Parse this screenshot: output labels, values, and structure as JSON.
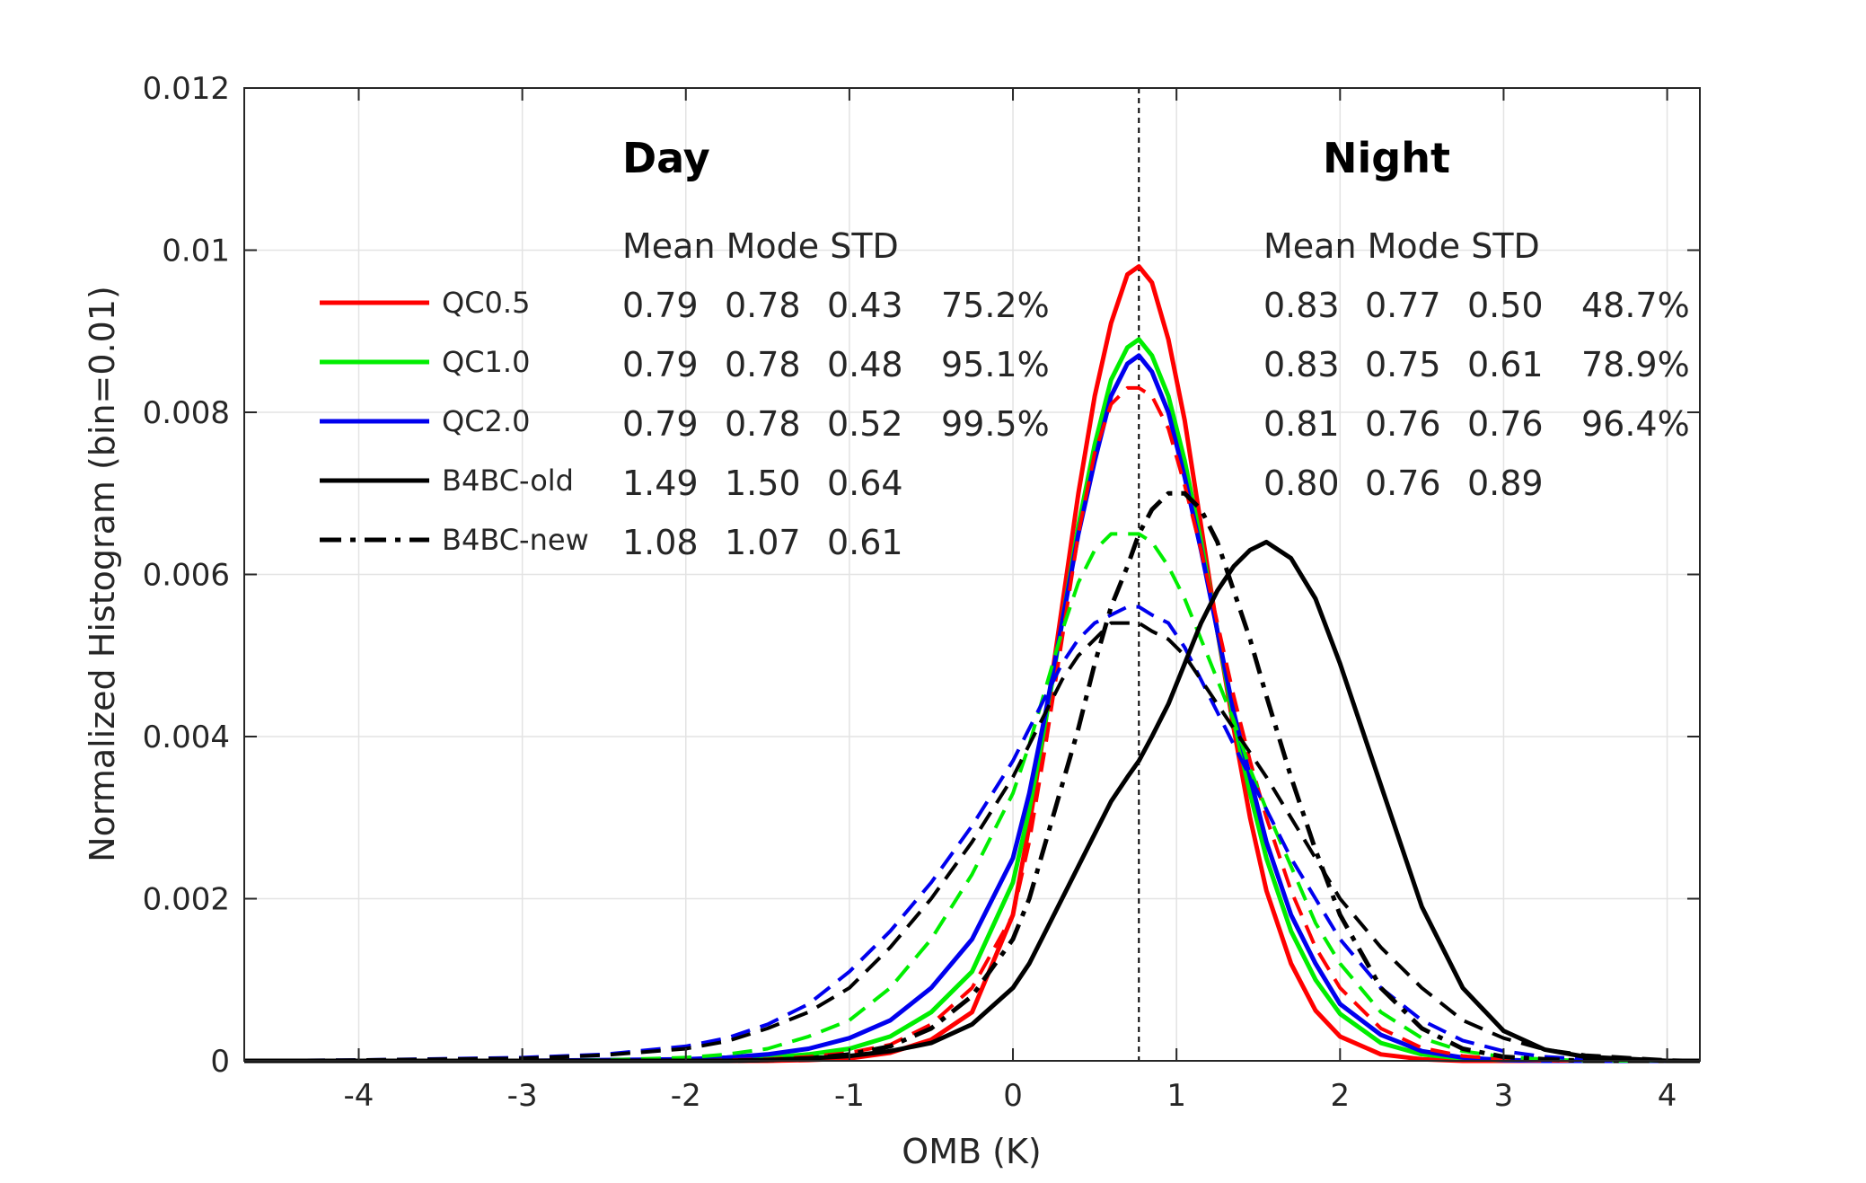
{
  "chart_data": {
    "type": "line",
    "xlabel": "OMB (K)",
    "ylabel": "Normalized Histogram (bin=0.01)",
    "xlim": [
      -4.7,
      4.2
    ],
    "ylim": [
      0,
      0.012
    ],
    "x_ticks": [
      -4,
      -3,
      -2,
      -1,
      0,
      1,
      2,
      3,
      4
    ],
    "x_tick_labels": [
      "-4",
      "-3",
      "-2",
      "-1",
      "0",
      "1",
      "2",
      "3",
      "4"
    ],
    "y_ticks": [
      0,
      0.002,
      0.004,
      0.006,
      0.008,
      0.01,
      0.012
    ],
    "y_tick_labels": [
      "0",
      "0.002",
      "0.004",
      "0.006",
      "0.008",
      "0.01",
      "0.012"
    ],
    "grid": true,
    "legend_position": "left",
    "reference_line_x": 0.77,
    "legend": [
      {
        "label": "QC0.5",
        "color": "#ff0000",
        "style": "solid"
      },
      {
        "label": "QC1.0",
        "color": "#00ee00",
        "style": "solid"
      },
      {
        "label": "QC2.0",
        "color": "#0000ee",
        "style": "solid"
      },
      {
        "label": "B4BC-old",
        "color": "#000000",
        "style": "solid"
      },
      {
        "label": "B4BC-new",
        "color": "#000000",
        "style": "dashdot"
      }
    ],
    "x": [
      -4.7,
      -4,
      -3,
      -2.5,
      -2,
      -1.75,
      -1.5,
      -1.25,
      -1,
      -0.75,
      -0.5,
      -0.25,
      0,
      0.1,
      0.2,
      0.3,
      0.4,
      0.5,
      0.6,
      0.7,
      0.77,
      0.85,
      0.95,
      1.05,
      1.15,
      1.25,
      1.35,
      1.45,
      1.55,
      1.7,
      1.85,
      2,
      2.25,
      2.5,
      2.75,
      3,
      3.25,
      3.5,
      4,
      4.2
    ],
    "series": [
      {
        "name": "QC0.5",
        "group": "day",
        "color": "#ff0000",
        "dash": "solid",
        "width": 5,
        "values": [
          0,
          0,
          0,
          0,
          0,
          0,
          0,
          1e-05,
          3e-05,
          0.0001,
          0.00026,
          0.0006,
          0.0018,
          0.0029,
          0.0042,
          0.0056,
          0.007,
          0.0082,
          0.0091,
          0.0097,
          0.0098,
          0.0096,
          0.0089,
          0.0079,
          0.0066,
          0.0053,
          0.0041,
          0.003,
          0.0021,
          0.0012,
          0.00062,
          0.0003,
          8e-05,
          2e-05,
          0,
          0,
          0,
          0,
          0,
          0
        ]
      },
      {
        "name": "QC1.0",
        "group": "day",
        "color": "#00ee00",
        "dash": "solid",
        "width": 5,
        "values": [
          0,
          0,
          0,
          0,
          1e-05,
          2e-05,
          4e-05,
          8e-05,
          0.00015,
          0.0003,
          0.0006,
          0.0011,
          0.0022,
          0.0031,
          0.0042,
          0.0054,
          0.0066,
          0.0076,
          0.0084,
          0.0088,
          0.0089,
          0.0087,
          0.0082,
          0.0074,
          0.0064,
          0.0053,
          0.0042,
          0.0033,
          0.0025,
          0.0016,
          0.001,
          0.00058,
          0.00022,
          8e-05,
          3e-05,
          1e-05,
          0,
          0,
          0,
          0
        ]
      },
      {
        "name": "QC2.0",
        "group": "day",
        "color": "#0000ee",
        "dash": "solid",
        "width": 5,
        "values": [
          0,
          0,
          0,
          1e-05,
          2e-05,
          4e-05,
          8e-05,
          0.00015,
          0.00028,
          0.0005,
          0.0009,
          0.0015,
          0.0025,
          0.0033,
          0.0043,
          0.0054,
          0.0065,
          0.0074,
          0.0082,
          0.0086,
          0.0087,
          0.0085,
          0.008,
          0.0072,
          0.0063,
          0.0053,
          0.0043,
          0.0035,
          0.0027,
          0.0018,
          0.0012,
          0.0007,
          0.00032,
          0.00012,
          4e-05,
          1e-05,
          0,
          0,
          0,
          0
        ]
      },
      {
        "name": "QC0.5",
        "group": "night",
        "color": "#ff0000",
        "dash": "dashed",
        "width": 4,
        "values": [
          0,
          0,
          0,
          0,
          0,
          1e-05,
          2e-05,
          5e-05,
          0.0001,
          0.0002,
          0.00045,
          0.0009,
          0.0018,
          0.0027,
          0.0039,
          0.0052,
          0.0065,
          0.0075,
          0.0081,
          0.0083,
          0.0083,
          0.0082,
          0.0078,
          0.0071,
          0.0063,
          0.0054,
          0.0045,
          0.0037,
          0.003,
          0.0021,
          0.0014,
          0.0009,
          0.0004,
          0.00016,
          6e-05,
          2e-05,
          0,
          0,
          0,
          0
        ]
      },
      {
        "name": "QC1.0",
        "group": "night",
        "color": "#00ee00",
        "dash": "dashed",
        "width": 4,
        "values": [
          0,
          0,
          0,
          1e-05,
          4e-05,
          8e-05,
          0.00015,
          0.0003,
          0.0005,
          0.0009,
          0.0015,
          0.0023,
          0.0033,
          0.0039,
          0.0046,
          0.0053,
          0.0059,
          0.0063,
          0.0065,
          0.0065,
          0.0065,
          0.0064,
          0.0061,
          0.0057,
          0.0052,
          0.0047,
          0.0042,
          0.0036,
          0.0031,
          0.0024,
          0.0017,
          0.0012,
          0.0006,
          0.00028,
          0.00012,
          5e-05,
          2e-05,
          0,
          0,
          0
        ]
      },
      {
        "name": "QC2.0",
        "group": "night",
        "color": "#0000ee",
        "dash": "dashed",
        "width": 4,
        "values": [
          0,
          1e-05,
          4e-05,
          8e-05,
          0.00018,
          0.00028,
          0.00045,
          0.0007,
          0.0011,
          0.0016,
          0.0022,
          0.0029,
          0.0037,
          0.0041,
          0.0045,
          0.0049,
          0.0052,
          0.0054,
          0.0055,
          0.0056,
          0.0056,
          0.0055,
          0.0054,
          0.0051,
          0.0047,
          0.0043,
          0.0039,
          0.0035,
          0.0031,
          0.0025,
          0.002,
          0.0015,
          0.0009,
          0.0005,
          0.00025,
          0.00012,
          5e-05,
          2e-05,
          0,
          0
        ]
      },
      {
        "name": "B4BC-old",
        "group": "day",
        "color": "#000000",
        "dash": "solid",
        "width": 5,
        "values": [
          0,
          0,
          0,
          0,
          0,
          0,
          1e-05,
          3e-05,
          6e-05,
          0.00012,
          0.00022,
          0.00045,
          0.0009,
          0.0012,
          0.0016,
          0.002,
          0.0024,
          0.0028,
          0.0032,
          0.0035,
          0.0037,
          0.004,
          0.0044,
          0.0049,
          0.0054,
          0.0058,
          0.0061,
          0.0063,
          0.0064,
          0.0062,
          0.0057,
          0.0049,
          0.0034,
          0.0019,
          0.0009,
          0.00037,
          0.00014,
          5e-05,
          0,
          0
        ]
      },
      {
        "name": "B4BC-new",
        "group": "day",
        "color": "#000000",
        "dash": "dashdot",
        "width": 5,
        "values": [
          0,
          0,
          0,
          0,
          0,
          0,
          1e-05,
          3e-05,
          8e-05,
          0.00018,
          0.0004,
          0.0008,
          0.0015,
          0.002,
          0.0027,
          0.0034,
          0.0041,
          0.0049,
          0.0056,
          0.0061,
          0.0065,
          0.0068,
          0.007,
          0.007,
          0.0068,
          0.0064,
          0.0058,
          0.0052,
          0.0045,
          0.0035,
          0.0026,
          0.0018,
          0.0009,
          0.0004,
          0.00015,
          5e-05,
          2e-05,
          0,
          0,
          0
        ]
      },
      {
        "name": "B4BC-new",
        "group": "night",
        "color": "#000000",
        "dash": "dashed",
        "width": 4,
        "values": [
          0,
          1e-05,
          3e-05,
          7e-05,
          0.00015,
          0.00024,
          0.0004,
          0.0006,
          0.0009,
          0.0014,
          0.002,
          0.0027,
          0.0035,
          0.0039,
          0.0043,
          0.0047,
          0.005,
          0.0052,
          0.0054,
          0.0054,
          0.0054,
          0.0053,
          0.0052,
          0.005,
          0.0047,
          0.0044,
          0.0041,
          0.0038,
          0.0035,
          0.003,
          0.0025,
          0.002,
          0.0014,
          0.0009,
          0.0005,
          0.00028,
          0.00014,
          7e-05,
          1e-05,
          0
        ]
      }
    ],
    "annotations": {
      "day": {
        "title": "Day",
        "header": "Mean Mode STD",
        "rows": [
          {
            "mean": "0.79",
            "mode": "0.78",
            "std": "0.43",
            "pct": "75.2%"
          },
          {
            "mean": "0.79",
            "mode": "0.78",
            "std": "0.48",
            "pct": "95.1%"
          },
          {
            "mean": "0.79",
            "mode": "0.78",
            "std": "0.52",
            "pct": "99.5%"
          },
          {
            "mean": "1.49",
            "mode": "1.50",
            "std": "0.64",
            "pct": ""
          },
          {
            "mean": "1.08",
            "mode": "1.07",
            "std": "0.61",
            "pct": ""
          }
        ]
      },
      "night": {
        "title": "Night",
        "header": "Mean Mode STD",
        "rows": [
          {
            "mean": "0.83",
            "mode": "0.77",
            "std": "0.50",
            "pct": "48.7%"
          },
          {
            "mean": "0.83",
            "mode": "0.75",
            "std": "0.61",
            "pct": "78.9%"
          },
          {
            "mean": "0.81",
            "mode": "0.76",
            "std": "0.76",
            "pct": "96.4%"
          },
          {
            "mean": "0.80",
            "mode": "0.76",
            "std": "0.89",
            "pct": ""
          }
        ]
      }
    }
  }
}
